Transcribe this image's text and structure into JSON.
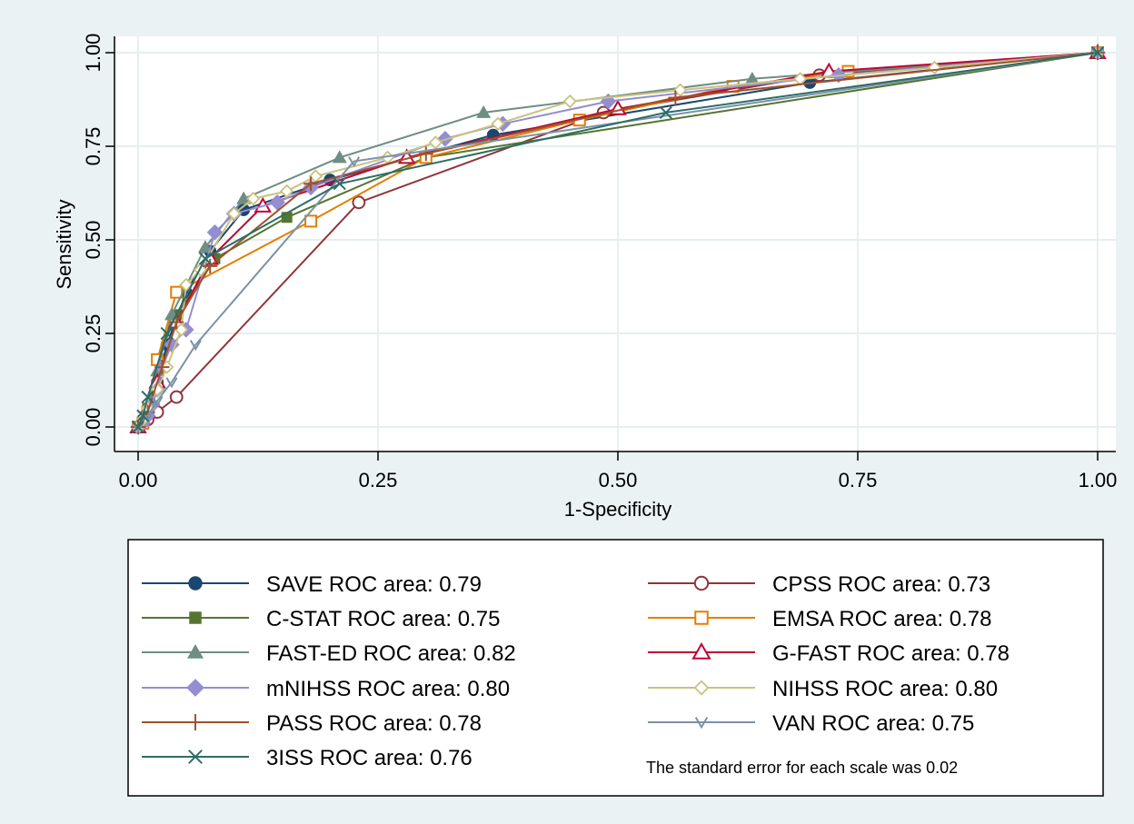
{
  "chart_data": {
    "type": "line",
    "title": "",
    "xlabel": "1-Specificity",
    "ylabel": "Sensitivity",
    "xlim": [
      0,
      1
    ],
    "ylim": [
      0,
      1
    ],
    "xticks": [
      "0.00",
      "0.25",
      "0.50",
      "0.75",
      "1.00"
    ],
    "yticks": [
      "0.00",
      "0.25",
      "0.50",
      "0.75",
      "1.00"
    ],
    "grid": true,
    "legend_position": "bottom",
    "note": "The standard error for each scale was 0.02",
    "series": [
      {
        "name": "SAVE ROC area: 0.79",
        "color": "#1a476f",
        "marker": "circle-filled",
        "points": [
          [
            0,
            0
          ],
          [
            0.005,
            0.02
          ],
          [
            0.01,
            0.05
          ],
          [
            0.02,
            0.12
          ],
          [
            0.03,
            0.22
          ],
          [
            0.05,
            0.36
          ],
          [
            0.075,
            0.47
          ],
          [
            0.11,
            0.58
          ],
          [
            0.2,
            0.66
          ],
          [
            0.37,
            0.78
          ],
          [
            0.7,
            0.92
          ],
          [
            1,
            1
          ]
        ]
      },
      {
        "name": "CPSS ROC area: 0.73",
        "color": "#90353b",
        "marker": "circle-hollow",
        "points": [
          [
            0,
            0
          ],
          [
            0.005,
            0.01
          ],
          [
            0.01,
            0.02
          ],
          [
            0.02,
            0.04
          ],
          [
            0.04,
            0.08
          ],
          [
            0.23,
            0.6
          ],
          [
            0.485,
            0.84
          ],
          [
            0.71,
            0.94
          ],
          [
            1,
            1
          ]
        ]
      },
      {
        "name": "C-STAT ROC area: 0.75",
        "color": "#55752f",
        "marker": "square-filled",
        "points": [
          [
            0,
            0
          ],
          [
            0.01,
            0.05
          ],
          [
            0.02,
            0.18
          ],
          [
            0.04,
            0.3
          ],
          [
            0.08,
            0.45
          ],
          [
            0.155,
            0.56
          ],
          [
            0.3,
            0.72
          ],
          [
            1,
            1
          ]
        ]
      },
      {
        "name": "EMSA ROC area: 0.78",
        "color": "#e37e00",
        "marker": "square-hollow",
        "points": [
          [
            0,
            0
          ],
          [
            0.005,
            0.01
          ],
          [
            0.01,
            0.04
          ],
          [
            0.02,
            0.18
          ],
          [
            0.04,
            0.36
          ],
          [
            0.18,
            0.55
          ],
          [
            0.3,
            0.72
          ],
          [
            0.46,
            0.82
          ],
          [
            0.62,
            0.91
          ],
          [
            0.74,
            0.95
          ],
          [
            1,
            1
          ]
        ]
      },
      {
        "name": "FAST-ED ROC area: 0.82",
        "color": "#6e8e84",
        "marker": "triangle-filled",
        "points": [
          [
            0,
            0
          ],
          [
            0.01,
            0.05
          ],
          [
            0.02,
            0.15
          ],
          [
            0.035,
            0.3
          ],
          [
            0.07,
            0.48
          ],
          [
            0.11,
            0.61
          ],
          [
            0.21,
            0.72
          ],
          [
            0.36,
            0.84
          ],
          [
            0.64,
            0.93
          ],
          [
            1,
            1
          ]
        ]
      },
      {
        "name": "G-FAST ROC area: 0.78",
        "color": "#c10534",
        "marker": "triangle-hollow",
        "points": [
          [
            0,
            0
          ],
          [
            0.01,
            0.04
          ],
          [
            0.02,
            0.12
          ],
          [
            0.04,
            0.28
          ],
          [
            0.075,
            0.45
          ],
          [
            0.13,
            0.59
          ],
          [
            0.28,
            0.72
          ],
          [
            0.5,
            0.85
          ],
          [
            0.72,
            0.95
          ],
          [
            1,
            1
          ]
        ]
      },
      {
        "name": "mNIHSS ROC area: 0.80",
        "color": "#938dd2",
        "marker": "diamond-filled",
        "points": [
          [
            0,
            0
          ],
          [
            0.005,
            0.01
          ],
          [
            0.01,
            0.03
          ],
          [
            0.015,
            0.06
          ],
          [
            0.02,
            0.1
          ],
          [
            0.025,
            0.16
          ],
          [
            0.035,
            0.22
          ],
          [
            0.05,
            0.26
          ],
          [
            0.08,
            0.52
          ],
          [
            0.1,
            0.57
          ],
          [
            0.145,
            0.6
          ],
          [
            0.18,
            0.64
          ],
          [
            0.32,
            0.77
          ],
          [
            0.38,
            0.81
          ],
          [
            0.49,
            0.87
          ],
          [
            0.73,
            0.94
          ],
          [
            1,
            1
          ]
        ]
      },
      {
        "name": "NIHSS ROC area: 0.80",
        "color": "#cac27e",
        "marker": "diamond-hollow",
        "points": [
          [
            0,
            0
          ],
          [
            0.005,
            0.02
          ],
          [
            0.01,
            0.05
          ],
          [
            0.02,
            0.1
          ],
          [
            0.03,
            0.16
          ],
          [
            0.045,
            0.26
          ],
          [
            0.05,
            0.38
          ],
          [
            0.065,
            0.42
          ],
          [
            0.1,
            0.57
          ],
          [
            0.12,
            0.61
          ],
          [
            0.155,
            0.63
          ],
          [
            0.185,
            0.67
          ],
          [
            0.26,
            0.72
          ],
          [
            0.31,
            0.76
          ],
          [
            0.375,
            0.81
          ],
          [
            0.45,
            0.87
          ],
          [
            0.565,
            0.9
          ],
          [
            0.69,
            0.93
          ],
          [
            0.83,
            0.96
          ],
          [
            1,
            1
          ]
        ]
      },
      {
        "name": "PASS ROC area: 0.78",
        "color": "#a0522d",
        "marker": "plus",
        "points": [
          [
            0,
            0
          ],
          [
            0.01,
            0.04
          ],
          [
            0.025,
            0.16
          ],
          [
            0.04,
            0.28
          ],
          [
            0.075,
            0.43
          ],
          [
            0.18,
            0.65
          ],
          [
            0.3,
            0.73
          ],
          [
            0.56,
            0.88
          ],
          [
            1,
            1
          ]
        ]
      },
      {
        "name": "VAN ROC area: 0.75",
        "color": "#7b92a8",
        "marker": "v",
        "points": [
          [
            0,
            0
          ],
          [
            0.01,
            0.03
          ],
          [
            0.02,
            0.07
          ],
          [
            0.035,
            0.12
          ],
          [
            0.06,
            0.22
          ],
          [
            0.225,
            0.71
          ],
          [
            1,
            1
          ]
        ]
      },
      {
        "name": "3ISS ROC area: 0.76",
        "color": "#2d6d66",
        "marker": "x",
        "points": [
          [
            0,
            0
          ],
          [
            0.005,
            0.03
          ],
          [
            0.01,
            0.08
          ],
          [
            0.03,
            0.25
          ],
          [
            0.07,
            0.45
          ],
          [
            0.21,
            0.65
          ],
          [
            0.55,
            0.84
          ],
          [
            1,
            1
          ]
        ]
      }
    ],
    "legend_order": [
      [
        "SAVE ROC area: 0.79",
        "CPSS ROC area: 0.73"
      ],
      [
        "C-STAT ROC area: 0.75",
        "EMSA ROC area: 0.78"
      ],
      [
        "FAST-ED ROC area: 0.82",
        "G-FAST ROC area: 0.78"
      ],
      [
        "mNIHSS ROC area: 0.80",
        "NIHSS ROC area: 0.80"
      ],
      [
        "PASS ROC area: 0.78",
        "VAN ROC area: 0.75"
      ],
      [
        "3ISS ROC area: 0.76",
        null
      ]
    ]
  }
}
